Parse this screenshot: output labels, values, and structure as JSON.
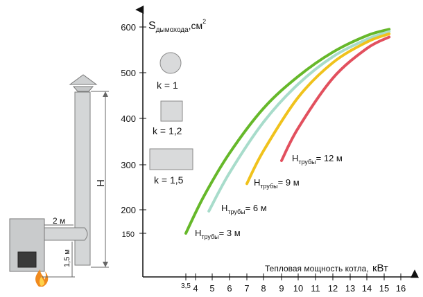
{
  "chart_data": {
    "type": "line",
    "ylabel_main": "S",
    "ylabel_sub": "дымохода",
    "ylabel_unit": ",см",
    "ylabel_sup": "2",
    "xlabel_main": "Тепловая мощность котла,",
    "xlabel_unit": "кВт",
    "xlim": [
      3,
      16
    ],
    "ylim": [
      120,
      620
    ],
    "x_ticks": [
      {
        "value": 3.5,
        "label": "3,5"
      },
      {
        "value": 4,
        "label": "4"
      },
      {
        "value": 5,
        "label": "5"
      },
      {
        "value": 6,
        "label": "6"
      },
      {
        "value": 7,
        "label": "7"
      },
      {
        "value": 8,
        "label": "8"
      },
      {
        "value": 9,
        "label": "9"
      },
      {
        "value": 10,
        "label": "10"
      },
      {
        "value": 11,
        "label": "11"
      },
      {
        "value": 12,
        "label": "12"
      },
      {
        "value": 13,
        "label": "13"
      },
      {
        "value": 14,
        "label": "14"
      },
      {
        "value": 15,
        "label": "15"
      },
      {
        "value": 16,
        "label": "16"
      }
    ],
    "y_ticks": [
      {
        "value": 150,
        "label": "150"
      },
      {
        "value": 200,
        "label": "200"
      },
      {
        "value": 300,
        "label": "300"
      },
      {
        "value": 400,
        "label": "400"
      },
      {
        "value": 500,
        "label": "500"
      },
      {
        "value": 600,
        "label": "600"
      }
    ],
    "series": [
      {
        "prefix": "H",
        "sub": "трубы",
        "value": "= 3 м",
        "color": "#66b82a",
        "points": [
          [
            3.5,
            150
          ],
          [
            4.5,
            230
          ],
          [
            6,
            325
          ],
          [
            8,
            422
          ],
          [
            10,
            492
          ],
          [
            12,
            545
          ],
          [
            14,
            581
          ],
          [
            15.3,
            595
          ]
        ]
      },
      {
        "prefix": "H",
        "sub": "трубы",
        "value": "= 6 м",
        "color": "#a8dccb",
        "points": [
          [
            4.8,
            197
          ],
          [
            6,
            282
          ],
          [
            8,
            392
          ],
          [
            10,
            475
          ],
          [
            12,
            535
          ],
          [
            14,
            573
          ],
          [
            15.3,
            590
          ]
        ]
      },
      {
        "prefix": "H",
        "sub": "трубы",
        "value": "= 9 м",
        "color": "#f0c21c",
        "points": [
          [
            7,
            258
          ],
          [
            8,
            330
          ],
          [
            10,
            446
          ],
          [
            12,
            522
          ],
          [
            14,
            567
          ],
          [
            15.3,
            585
          ]
        ]
      },
      {
        "prefix": "H",
        "sub": "трубы",
        "value": "= 12 м",
        "color": "#e2505e",
        "points": [
          [
            9,
            309
          ],
          [
            10,
            379
          ],
          [
            12,
            488
          ],
          [
            14,
            553
          ],
          [
            15.3,
            578
          ]
        ]
      }
    ]
  },
  "shapes": [
    {
      "label": "k = 1",
      "kind": "circle"
    },
    {
      "label": "k = 1,2",
      "kind": "square"
    },
    {
      "label": "k = 1,5",
      "kind": "rect"
    }
  ],
  "diagram": {
    "height_label": "H",
    "pipe_label": "2 м",
    "stove_label": "1,5 м"
  },
  "colors": {
    "shape_fill": "#d9dadb",
    "shape_stroke": "#8a8a8a",
    "chimney_fill": "#d4d6d7",
    "flame": "#f08a1e"
  }
}
